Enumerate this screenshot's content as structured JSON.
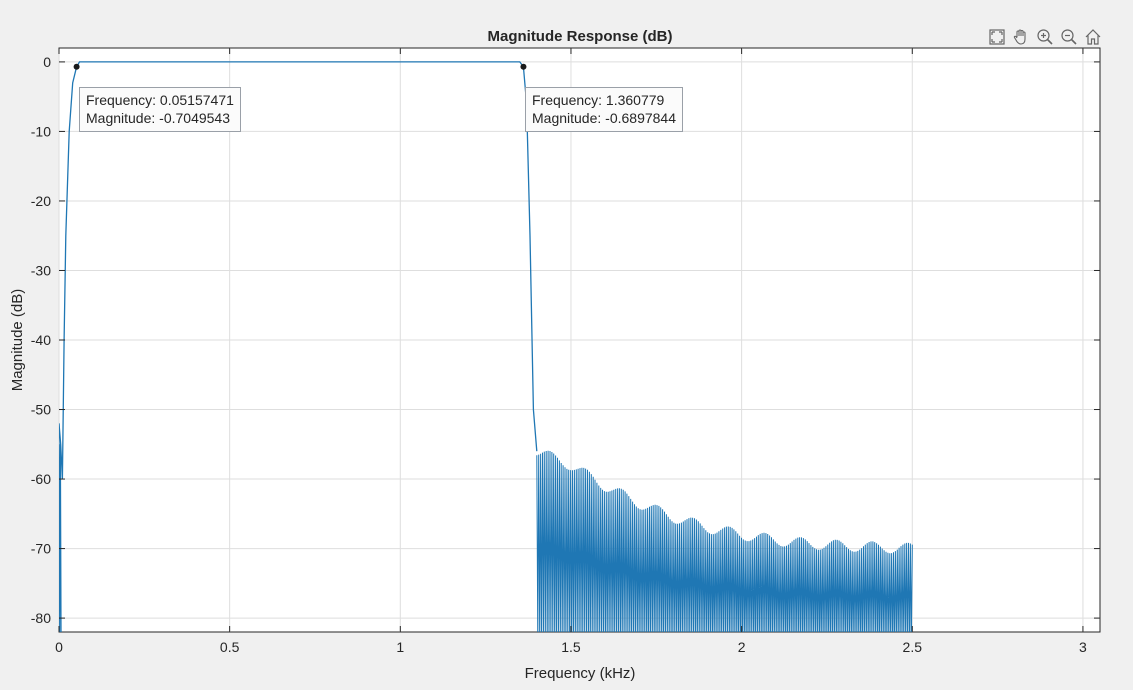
{
  "toolbar": {
    "icons": [
      "restore-view-icon",
      "pan-hand-icon",
      "zoom-in-icon",
      "zoom-out-icon",
      "home-icon"
    ]
  },
  "chart_data": {
    "type": "line",
    "title": "Magnitude Response (dB)",
    "xlabel": "Frequency (kHz)",
    "ylabel": "Magnitude (dB)",
    "xlim": [
      0,
      3.05
    ],
    "ylim": [
      -82,
      2
    ],
    "xticks": [
      0,
      0.5,
      1,
      1.5,
      2,
      2.5,
      3
    ],
    "xtick_labels": [
      "0",
      "0.5",
      "1",
      "1.5",
      "2",
      "2.5",
      "3"
    ],
    "yticks": [
      0,
      -10,
      -20,
      -30,
      -40,
      -50,
      -60,
      -70,
      -80
    ],
    "ytick_labels": [
      "0",
      "-10",
      "-20",
      "-30",
      "-40",
      "-50",
      "-60",
      "-70",
      "-80"
    ],
    "grid": true,
    "line_color": "#1f77b4",
    "series": [
      {
        "passband": {
          "x": [
            0,
            0.005,
            0.01,
            0.015,
            0.02,
            0.03,
            0.04,
            0.05157471,
            0.06,
            1.35,
            1.360779,
            1.37,
            1.38,
            1.39,
            1.4
          ],
          "y": [
            -52,
            -55,
            -60,
            -40,
            -25,
            -10,
            -3,
            -0.7049543,
            0,
            0,
            -0.6897844,
            -6,
            -25,
            -50,
            -56
          ]
        },
        "stopband_envelope": {
          "x": [
            1.4,
            1.45,
            1.5,
            1.6,
            1.7,
            1.8,
            1.9,
            2.0,
            2.1,
            2.2,
            2.3,
            2.4,
            2.5
          ],
          "y": [
            -56,
            -57,
            -58,
            -61,
            -63.5,
            -65.5,
            -67,
            -68,
            -68.8,
            -69.3,
            -69.6,
            -69.8,
            -70
          ]
        },
        "stopband_floor": -82,
        "stopband_end": 2.5
      }
    ],
    "datatips": [
      {
        "frequency_label": "Frequency: 0.05157471",
        "magnitude_label": "Magnitude: -0.7049543",
        "x": 0.05157471,
        "y": -0.7049543
      },
      {
        "frequency_label": "Frequency: 1.360779",
        "magnitude_label": "Magnitude: -0.6897844",
        "x": 1.360779,
        "y": -0.6897844
      }
    ]
  }
}
